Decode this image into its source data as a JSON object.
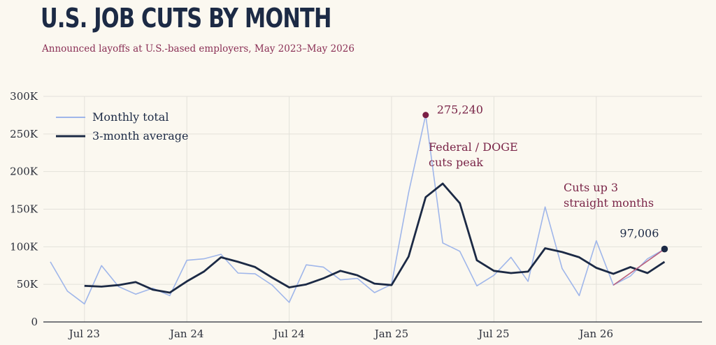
{
  "title": "U.S. JOB CUTS BY MONTH",
  "subtitle": "Announced layoffs at U.S.-based employers, May 2023–May 2026",
  "colors": {
    "background": "#fbf8f0",
    "monthly": "#9fb6ea",
    "average": "#1c2a45",
    "accent": "#7a1f45",
    "grid": "#e3e1da"
  },
  "chart_data": {
    "type": "line",
    "title": "U.S. JOB CUTS BY MONTH",
    "subtitle": "Announced layoffs at U.S.-based employers, May 2023–May 2026",
    "xlabel": "",
    "ylabel": "",
    "ylim": [
      0,
      300000
    ],
    "yticks": [
      0,
      50000,
      100000,
      150000,
      200000,
      250000,
      300000
    ],
    "ytick_labels": [
      "0",
      "50K",
      "100K",
      "150K",
      "200K",
      "250K",
      "300K"
    ],
    "xtick_labels": [
      {
        "label": "Jul 23",
        "date": "2023-07"
      },
      {
        "label": "Jan 24",
        "date": "2024-01"
      },
      {
        "label": "Jul 24",
        "date": "2024-07"
      },
      {
        "label": "Jan 25",
        "date": "2025-01"
      },
      {
        "label": "Jul 25",
        "date": "2025-07"
      },
      {
        "label": "Jan 26",
        "date": "2026-01"
      }
    ],
    "grid": true,
    "legend_position": "top-left",
    "x": [
      "2023-05",
      "2023-06",
      "2023-07",
      "2023-08",
      "2023-09",
      "2023-10",
      "2023-11",
      "2023-12",
      "2024-01",
      "2024-02",
      "2024-03",
      "2024-04",
      "2024-05",
      "2024-06",
      "2024-07",
      "2024-08",
      "2024-09",
      "2024-10",
      "2024-11",
      "2024-12",
      "2025-01",
      "2025-02",
      "2025-03",
      "2025-04",
      "2025-05",
      "2025-06",
      "2025-07",
      "2025-08",
      "2025-09",
      "2025-10",
      "2025-11",
      "2025-12",
      "2026-01",
      "2026-02",
      "2026-03",
      "2026-04",
      "2026-05"
    ],
    "series": [
      {
        "name": "Monthly total",
        "values": [
          80000,
          41000,
          24000,
          75000,
          47000,
          37000,
          45000,
          35000,
          82000,
          84000,
          90000,
          65000,
          64000,
          49000,
          26000,
          76000,
          73000,
          56000,
          58000,
          39000,
          50000,
          172000,
          275240,
          105000,
          94000,
          48000,
          62000,
          86000,
          54000,
          153000,
          71000,
          35000,
          108000,
          49000,
          61000,
          84000,
          97006
        ]
      },
      {
        "name": "3-month average",
        "values": [
          null,
          null,
          48000,
          47000,
          49000,
          53000,
          43000,
          39000,
          54000,
          67000,
          86000,
          80000,
          73000,
          59000,
          46000,
          50000,
          58000,
          68000,
          62000,
          51000,
          49000,
          87000,
          166000,
          184000,
          158000,
          82000,
          68000,
          65000,
          67000,
          98000,
          93000,
          86000,
          72000,
          64000,
          73000,
          65000,
          80000
        ]
      }
    ],
    "annotations": [
      {
        "text": "275,240",
        "x": "2025-03",
        "y": 275240
      },
      {
        "text": "Federal / DOGE cuts peak",
        "lines": [
          "Federal / DOGE",
          "cuts peak"
        ],
        "x": "2025-03"
      },
      {
        "text": "Cuts up 3 straight months",
        "lines": [
          "Cuts up 3",
          "straight months"
        ],
        "x": "2026-03"
      },
      {
        "text": "97,006",
        "x": "2026-05",
        "y": 97006
      }
    ]
  }
}
